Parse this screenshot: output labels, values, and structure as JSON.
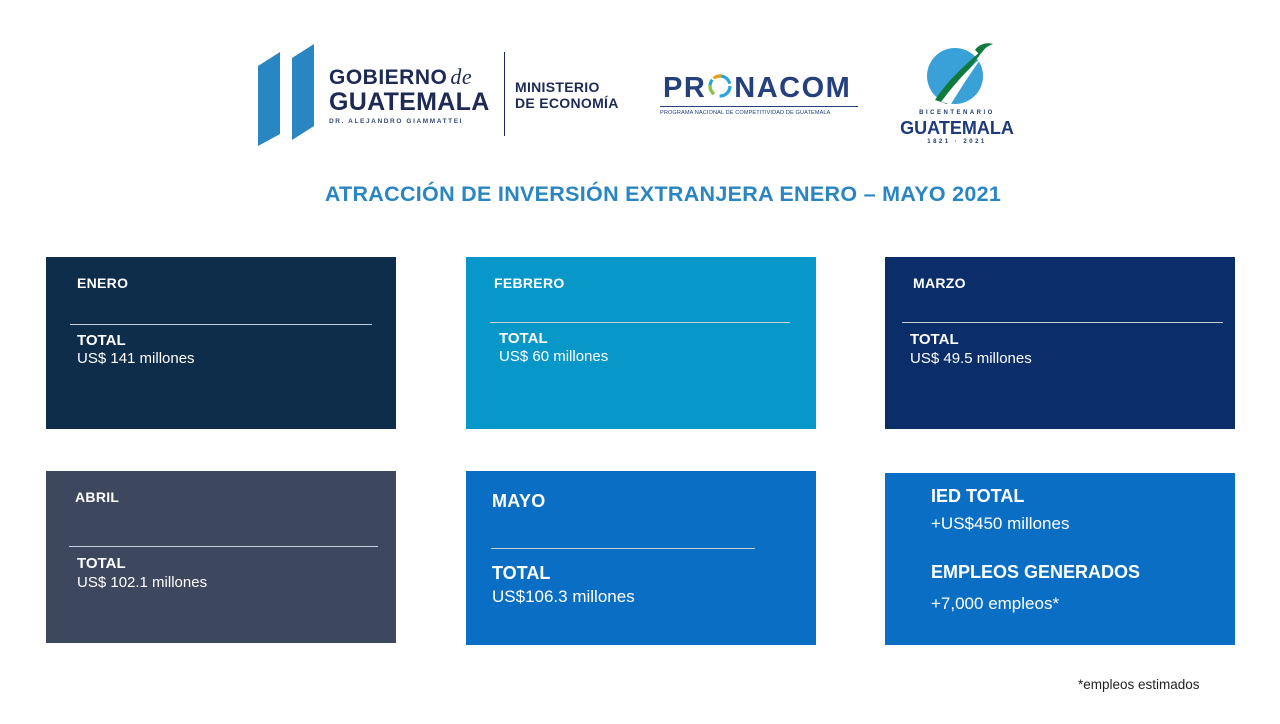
{
  "header": {
    "gobierno": {
      "line1_a": "GOBIERNO",
      "line1_b": "de",
      "line2": "GUATEMALA",
      "line3": "DR. ALEJANDRO GIAMMATTEI"
    },
    "ministerio": {
      "line1": "MINISTERIO",
      "line2": "DE ECONOMÍA"
    },
    "pronacom": {
      "word_a": "PR",
      "word_b": "NACOM",
      "subtitle": "PROGRAMA NACIONAL DE COMPETITIVIDAD DE GUATEMALA"
    },
    "bicentenario": {
      "top": "BICENTENARIO",
      "main": "GUATEMALA",
      "years": "1821 · 2021"
    }
  },
  "headline": "ATRACCIÓN DE INVERSIÓN EXTRANJERA ENERO – MAYO 2021",
  "cards": {
    "enero": {
      "month": "ENERO",
      "total_label": "TOTAL",
      "total_value": "US$ 141 millones"
    },
    "febrero": {
      "month": "FEBRERO",
      "total_label": "TOTAL",
      "total_value": "US$ 60 millones"
    },
    "marzo": {
      "month": "MARZO",
      "total_label": "TOTAL",
      "total_value": "US$ 49.5 millones"
    },
    "abril": {
      "month": "ABRIL",
      "total_label": "TOTAL",
      "total_value": "US$ 102.1 millones"
    },
    "mayo": {
      "month": "MAYO",
      "total_label": "TOTAL",
      "total_value": "US$106.3 millones"
    }
  },
  "summary": {
    "ied_label": "IED TOTAL",
    "ied_value": "+US$450 millones",
    "empleos_label": "EMPLEOS GENERADOS",
    "empleos_value": "+7,000 empleos*"
  },
  "footnote": "*empleos estimados",
  "colors": {
    "headline": "#2a86c2",
    "enero": "#0e2d4a",
    "febrero": "#0797c8",
    "marzo": "#0b2e6b",
    "abril": "#3d475e",
    "mayo": "#0a6fc4",
    "summary": "#0a6fc4",
    "brand_navy": "#1d2a54"
  },
  "icons": [
    "gobierno-pillars-icon",
    "pronacom-ring-icon",
    "bicentenario-quetzal-icon"
  ]
}
